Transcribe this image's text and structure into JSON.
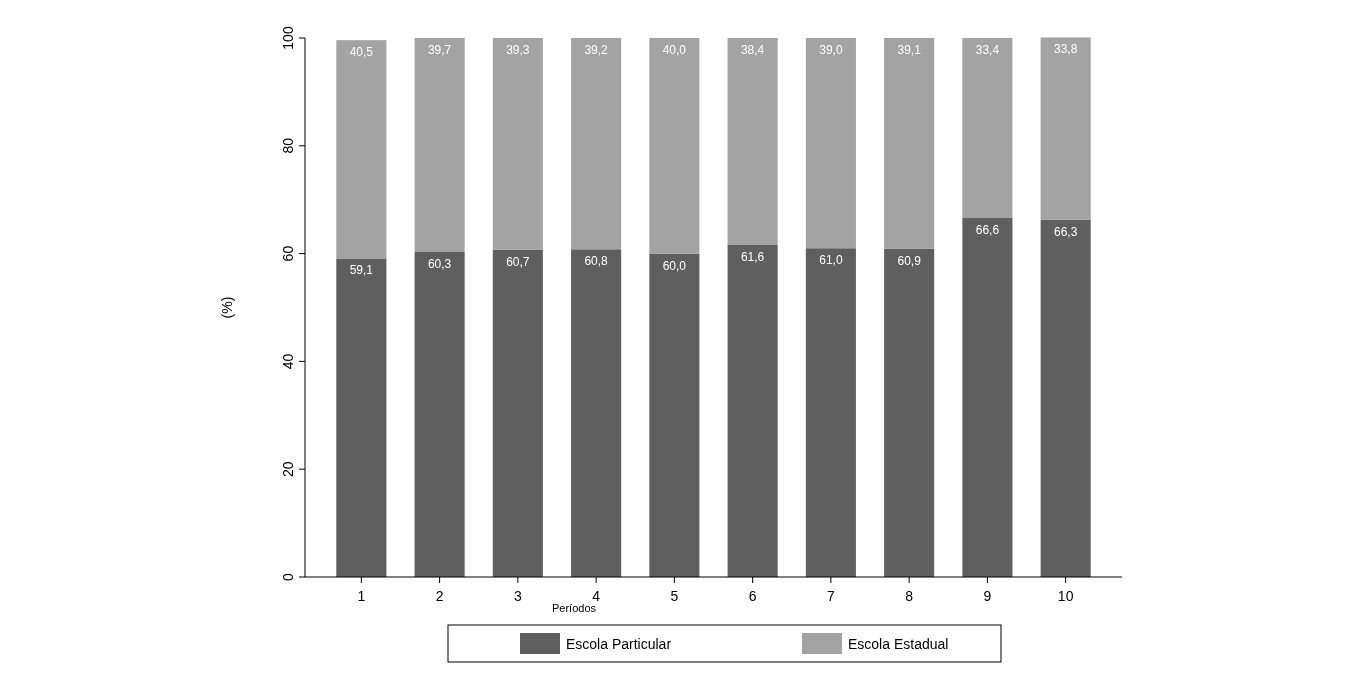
{
  "chart_data": {
    "type": "bar",
    "stacked": true,
    "xlabel": "Períodos",
    "ylabel": "(%)",
    "categories": [
      "1",
      "2",
      "3",
      "4",
      "5",
      "6",
      "7",
      "8",
      "9",
      "10"
    ],
    "series": [
      {
        "name": "Escola Particular",
        "color": "#5f5f5f",
        "values": [
          59.1,
          60.3,
          60.7,
          60.8,
          60.0,
          61.6,
          61.0,
          60.9,
          66.6,
          66.3
        ],
        "value_labels": [
          "59,1",
          "60,3",
          "60,7",
          "60,8",
          "60,0",
          "61,6",
          "61,0",
          "60,9",
          "66,6",
          "66,3"
        ]
      },
      {
        "name": "Escola Estadual",
        "color": "#a3a3a3",
        "values": [
          40.5,
          39.7,
          39.3,
          39.2,
          40.0,
          38.4,
          39.0,
          39.1,
          33.4,
          33.8
        ],
        "value_labels": [
          "40,5",
          "39,7",
          "39,3",
          "39,2",
          "40,0",
          "38,4",
          "39,0",
          "39,1",
          "33,4",
          "33,8"
        ]
      }
    ],
    "ylim": [
      0,
      100
    ],
    "yticks": [
      0,
      20,
      40,
      60,
      80,
      100
    ],
    "legend": "bottom",
    "grid": false
  }
}
